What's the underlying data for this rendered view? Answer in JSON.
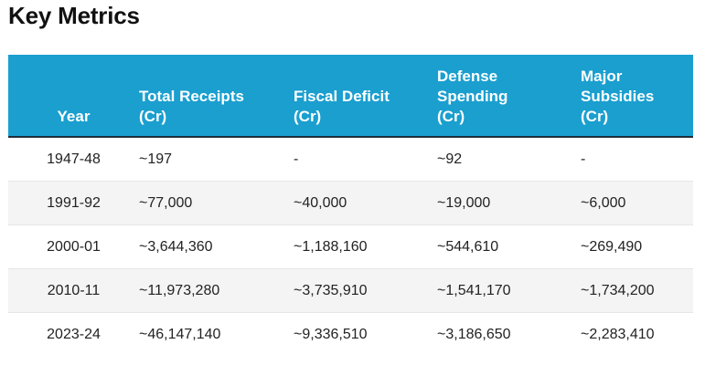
{
  "title": "Key Metrics",
  "table": {
    "headers": [
      [
        "Year"
      ],
      [
        "Total Receipts",
        "(Cr)"
      ],
      [
        "Fiscal Deficit",
        "(Cr)"
      ],
      [
        "Defense",
        "Spending",
        "(Cr)"
      ],
      [
        "Major",
        "Subsidies",
        "(Cr)"
      ]
    ],
    "rows": [
      [
        "1947-48",
        "~197",
        "-",
        "~92",
        "-"
      ],
      [
        "1991-92",
        "~77,000",
        "~40,000",
        "~19,000",
        "~6,000"
      ],
      [
        "2000-01",
        "~3,644,360",
        "~1,188,160",
        "~544,610",
        "~269,490"
      ],
      [
        "2010-11",
        "~11,973,280",
        "~3,735,910",
        "~1,541,170",
        "~1,734,200"
      ],
      [
        "2023-24",
        "~46,147,140",
        "~9,336,510",
        "~3,186,650",
        "~2,283,410"
      ]
    ]
  },
  "colors": {
    "header_bg": "#1a9fcf",
    "header_text": "#ffffff",
    "stripe": "#f4f4f4"
  }
}
